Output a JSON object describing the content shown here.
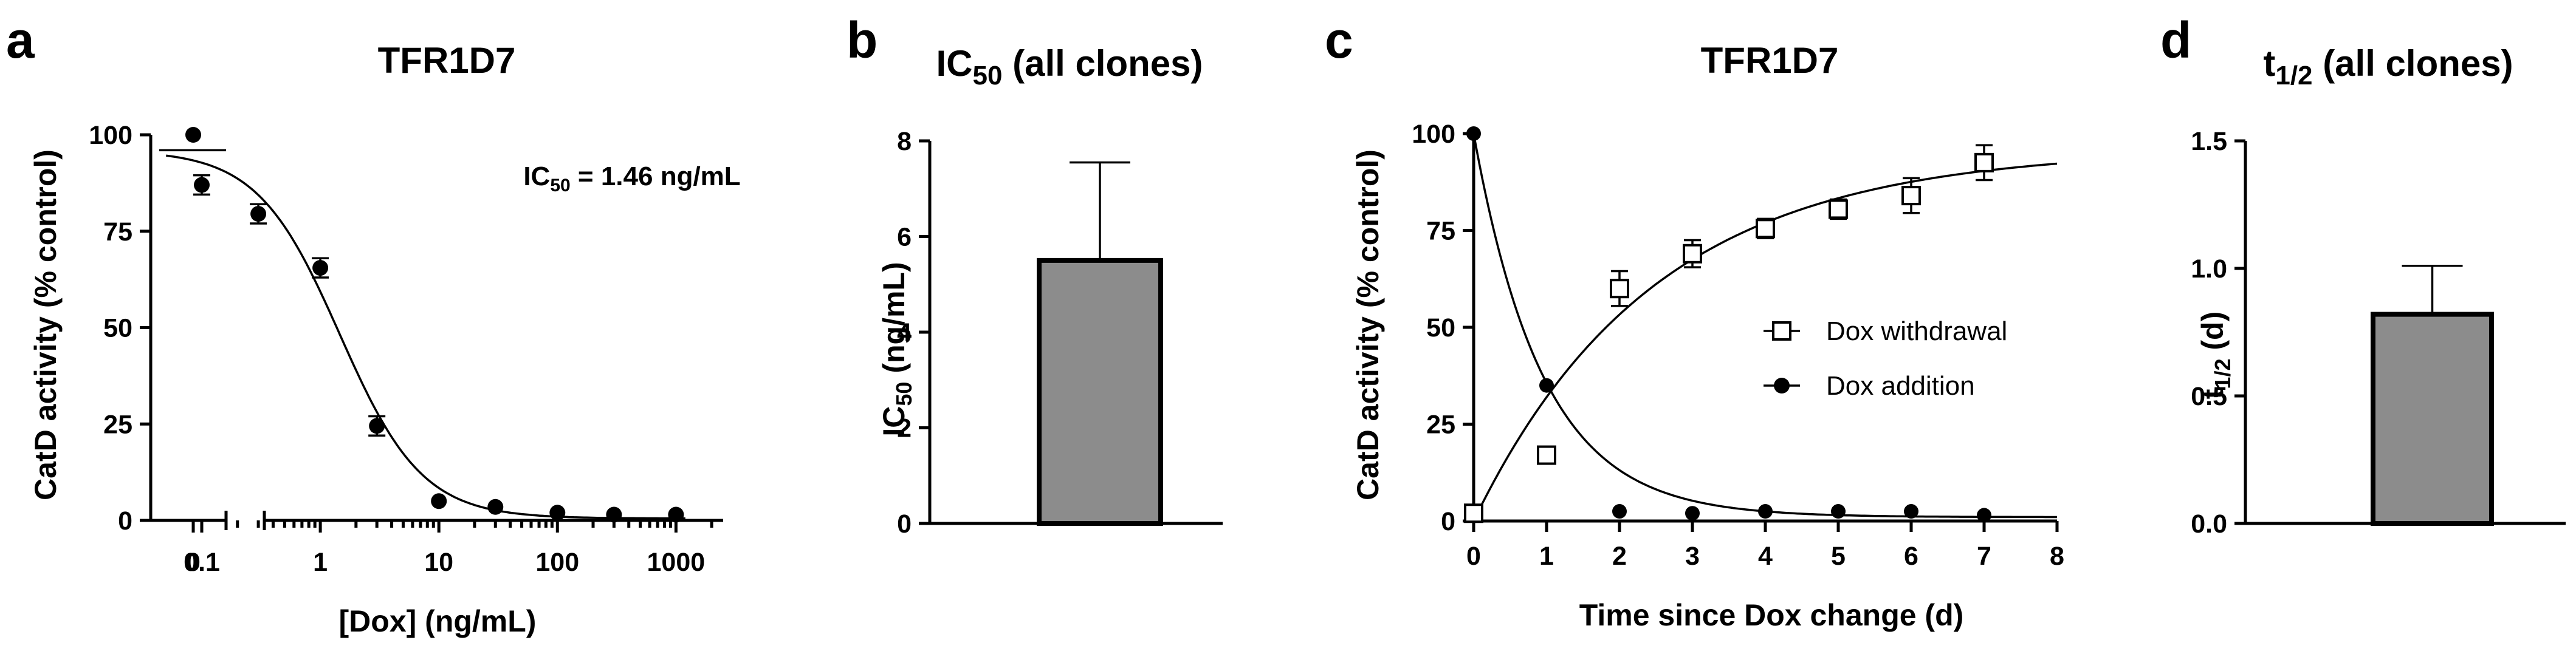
{
  "panels": {
    "a": {
      "letter": "a",
      "title": "TFR1D7"
    },
    "b": {
      "letter": "b",
      "title_main": "IC",
      "title_sub": "50",
      "title_rest": " (all clones)"
    },
    "c": {
      "letter": "c",
      "title": "TFR1D7"
    },
    "d": {
      "letter": "d",
      "title_main": "t",
      "title_sub": "1/2",
      "title_rest": " (all clones)"
    }
  },
  "chart_data": [
    {
      "id": "a",
      "type": "scatter",
      "title": "TFR1D7",
      "xlabel": "[Dox] (ng/mL)",
      "ylabel": "CatD activity (% control)",
      "x_scale": "log",
      "x_break": true,
      "xlim": [
        0.03,
        2500
      ],
      "ylim": [
        0,
        100
      ],
      "x_ticks": [
        0.1,
        1,
        10,
        100,
        1000
      ],
      "x_tick_labels": [
        "0.1",
        "1",
        "10",
        "100",
        "1000"
      ],
      "zero_tick_label": "0",
      "y_ticks": [
        0,
        25,
        50,
        75,
        100
      ],
      "y_tick_labels": [
        "0",
        "25",
        "50",
        "75",
        "100"
      ],
      "zero_point": {
        "y": 100
      },
      "points": [
        {
          "x": 0.1,
          "y": 87,
          "err": 2.5
        },
        {
          "x": 0.3,
          "y": 79.5,
          "err": 2.5
        },
        {
          "x": 1,
          "y": 65.5,
          "err": 2.5
        },
        {
          "x": 3,
          "y": 24.5,
          "err": 2.5
        },
        {
          "x": 10,
          "y": 5
        },
        {
          "x": 30,
          "y": 3.5
        },
        {
          "x": 100,
          "y": 2
        },
        {
          "x": 300,
          "y": 1.5
        },
        {
          "x": 1000,
          "y": 1.5
        }
      ],
      "fit": {
        "top": 96,
        "bottom": 0.5,
        "ic50": 1.46,
        "hill": 1.25
      },
      "annotation_main": "IC",
      "annotation_sub": "50",
      "annotation_rest": " = 1.46 ng/mL"
    },
    {
      "id": "b",
      "type": "bar",
      "title": "IC50 (all clones)",
      "ylabel_main": "IC",
      "ylabel_sub": "50",
      "ylabel_rest": " (ng/mL)",
      "ylim": [
        0,
        8
      ],
      "y_ticks": [
        0,
        2,
        4,
        6,
        8
      ],
      "y_tick_labels": [
        "0",
        "2",
        "4",
        "6",
        "8"
      ],
      "values": [
        5.5
      ],
      "errors": [
        2.05
      ],
      "bar_color": "#8c8c8c"
    },
    {
      "id": "c",
      "type": "scatter",
      "title": "TFR1D7",
      "xlabel": "Time since Dox change (d)",
      "ylabel": "CatD activity (% control)",
      "xlim": [
        0,
        8
      ],
      "ylim": [
        0,
        100
      ],
      "x_ticks": [
        0,
        1,
        2,
        3,
        4,
        5,
        6,
        7,
        8
      ],
      "x_tick_labels": [
        "0",
        "1",
        "2",
        "3",
        "4",
        "5",
        "6",
        "7",
        "8"
      ],
      "y_ticks": [
        0,
        25,
        50,
        75,
        100
      ],
      "y_tick_labels": [
        "0",
        "25",
        "50",
        "75",
        "100"
      ],
      "legend_position": "right",
      "series": [
        {
          "name": "Dox withdrawal",
          "marker": "open-square",
          "points": [
            {
              "x": 0,
              "y": 2
            },
            {
              "x": 1,
              "y": 17
            },
            {
              "x": 2,
              "y": 60,
              "err": 4.5
            },
            {
              "x": 3,
              "y": 69,
              "err": 3.5
            },
            {
              "x": 4,
              "y": 75.5,
              "err": 2.5
            },
            {
              "x": 5,
              "y": 80.5,
              "err": 2.5
            },
            {
              "x": 6,
              "y": 84,
              "err": 4.5
            },
            {
              "x": 7,
              "y": 92.5,
              "err": 4.5
            }
          ],
          "fit": {
            "type": "rise",
            "plateau": 96,
            "k": 0.405
          }
        },
        {
          "name": "Dox addition",
          "marker": "filled-circle",
          "points": [
            {
              "x": 0,
              "y": 100
            },
            {
              "x": 1,
              "y": 35
            },
            {
              "x": 2,
              "y": 2.5
            },
            {
              "x": 3,
              "y": 2
            },
            {
              "x": 4,
              "y": 2.5
            },
            {
              "x": 5,
              "y": 2.5
            },
            {
              "x": 6,
              "y": 2.5
            },
            {
              "x": 7,
              "y": 1.5
            }
          ],
          "fit": {
            "type": "decay",
            "start": 100,
            "plateau": 1,
            "k": 1.05
          }
        }
      ]
    },
    {
      "id": "d",
      "type": "bar",
      "title": "t1/2 (all clones)",
      "ylabel_main": "t",
      "ylabel_sub": "1/2",
      "ylabel_rest": " (d)",
      "ylim": [
        0,
        1.5
      ],
      "y_ticks": [
        0,
        0.5,
        1.0,
        1.5
      ],
      "y_tick_labels": [
        "0.0",
        "0.5",
        "1.0",
        "1.5"
      ],
      "values": [
        0.82
      ],
      "errors": [
        0.19
      ],
      "bar_color": "#8c8c8c"
    }
  ]
}
